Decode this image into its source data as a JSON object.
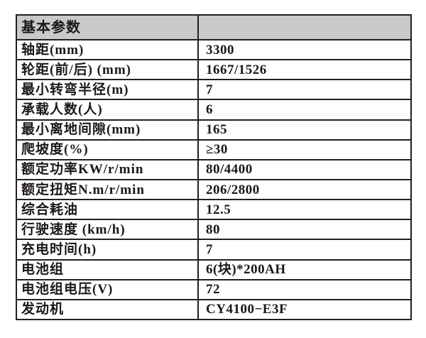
{
  "table": {
    "title_row": {
      "label": "基本参数",
      "value": ""
    },
    "rows": [
      {
        "label": "轴距(mm)",
        "value": "3300"
      },
      {
        "label": "轮距(前/后) (mm)",
        "value": "1667/1526"
      },
      {
        "label": "最小转弯半径(m)",
        "value": "7"
      },
      {
        "label": "承载人数(人)",
        "value": "6"
      },
      {
        "label": "最小离地间隙(mm)",
        "value": "165"
      },
      {
        "label": "爬坡度(%)",
        "value": "≥30"
      },
      {
        "label": "额定功率KW/r/min",
        "value": "80/4400"
      },
      {
        "label": "额定扭矩N.m/r/min",
        "value": "206/2800"
      },
      {
        "label": "综合耗油",
        "value": "12.5"
      },
      {
        "label": "行驶速度 (km/h)",
        "value": "80"
      },
      {
        "label": "充电时间(h)",
        "value": "7"
      },
      {
        "label": "电池组",
        "value": "6(块)*200AH"
      },
      {
        "label": "电池组电压(V)",
        "value": "72"
      },
      {
        "label": "发动机",
        "value": "CY4100−E3F"
      }
    ],
    "colors": {
      "header_background": "#c9c9c9",
      "border": "#231f20",
      "text": "#1c1719",
      "page_background": "#ffffff"
    }
  }
}
